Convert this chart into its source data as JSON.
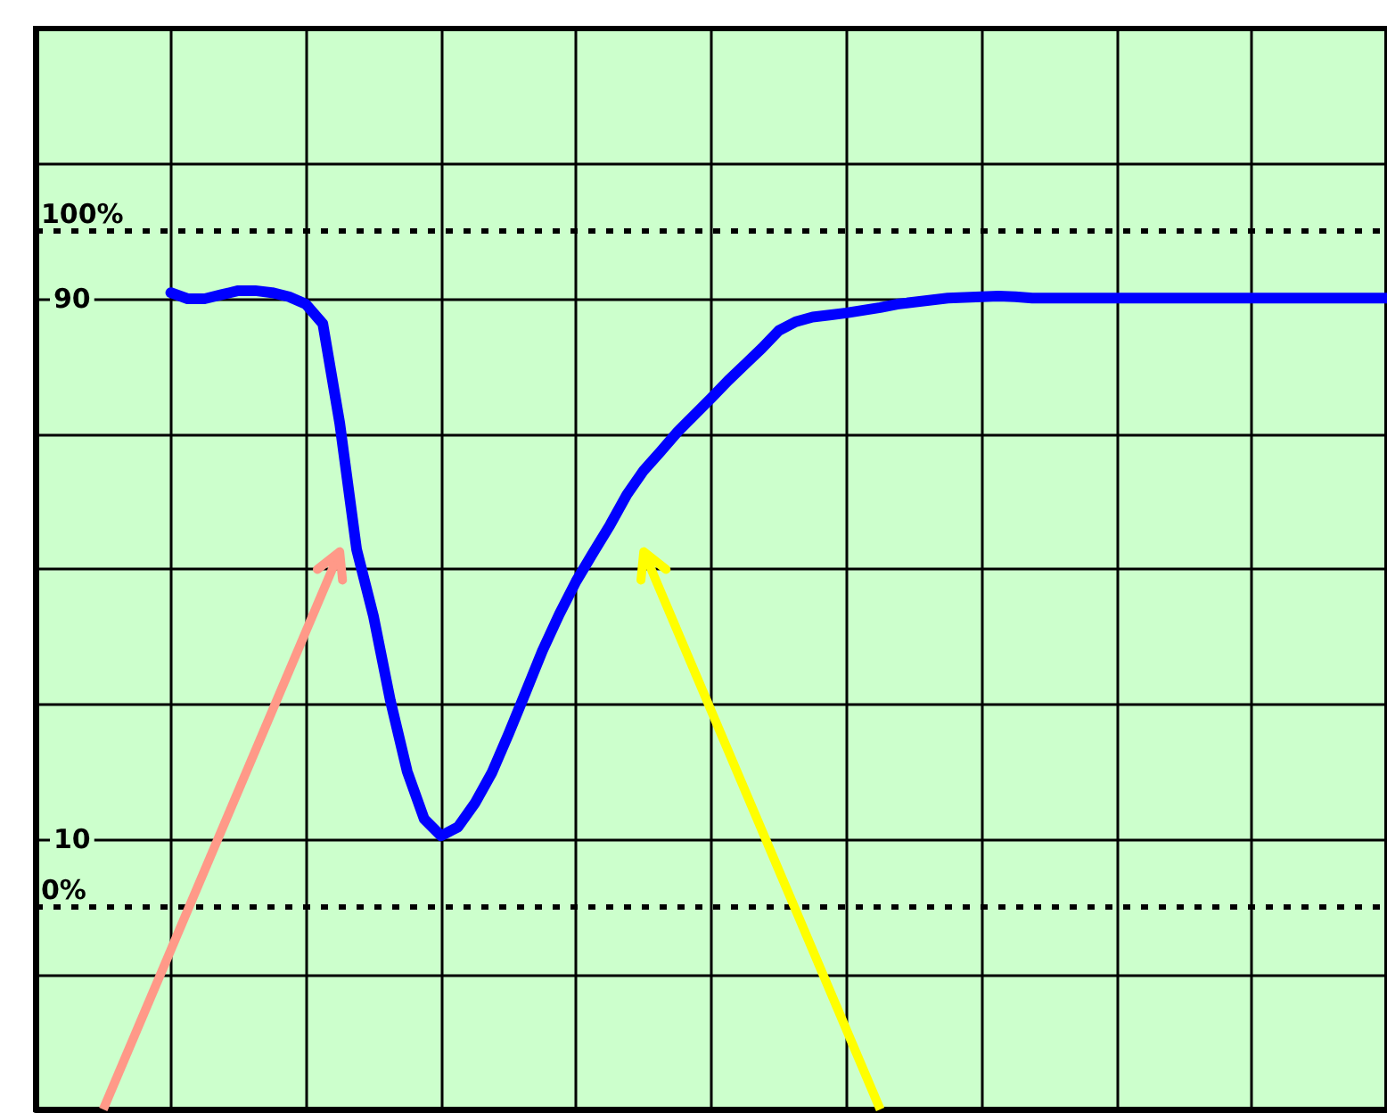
{
  "chart_data": {
    "type": "line",
    "categories": [
      null,
      null,
      null,
      null,
      null,
      null,
      null,
      null,
      null,
      null,
      null,
      null,
      null,
      null,
      null,
      null,
      null,
      null,
      null,
      null,
      null,
      null,
      null,
      null,
      null,
      null,
      null,
      null,
      null,
      null,
      null,
      null,
      null,
      null,
      null,
      null,
      null,
      null,
      null,
      null,
      null,
      null,
      null,
      null,
      null,
      null,
      null,
      null,
      null,
      null,
      null,
      null,
      null,
      null,
      null,
      null,
      null,
      null,
      null,
      null,
      null,
      null,
      null,
      null,
      null,
      null,
      null,
      null,
      null,
      null,
      null,
      null,
      null,
      null,
      null,
      null,
      null,
      null,
      null,
      null,
      null
    ],
    "series": [
      {
        "color": "#0000ff",
        "values": [
          null,
          null,
          null,
          null,
          null,
          null,
          null,
          null,
          90.9,
          90.0,
          90.0,
          90.6,
          91.2,
          91.2,
          90.9,
          90.3,
          89.2,
          86.3,
          71.6,
          52.9,
          43.0,
          30.5,
          20.0,
          13.0,
          10.5,
          11.8,
          15.3,
          19.8,
          25.6,
          31.7,
          37.9,
          43.3,
          48.2,
          52.4,
          56.5,
          61.0,
          64.6,
          67.4,
          70.3,
          72.8,
          75.3,
          77.9,
          80.3,
          82.7,
          85.3,
          86.6,
          87.3,
          87.6,
          87.9,
          88.3,
          88.7,
          89.2,
          89.5,
          89.8,
          90.1,
          90.2,
          90.3,
          90.4,
          90.3,
          90.1,
          90.1,
          90.1,
          90.1,
          90.1,
          90.1,
          90.1,
          90.1,
          90.1,
          90.1,
          90.1,
          90.1,
          90.1,
          90.1,
          90.1,
          90.1,
          90.1,
          90.1,
          90.1,
          90.1,
          90.1,
          90.1
        ]
      }
    ],
    "ylim": [
      -30,
      130
    ],
    "yticks": [
      {
        "value": -10,
        "label": null
      },
      10,
      {
        "value": 30,
        "label": null
      },
      {
        "value": 50,
        "label": null
      },
      {
        "value": 70,
        "label": null
      },
      90,
      {
        "value": 110,
        "label": null
      }
    ],
    "ref_lines": [
      {
        "axis": "y",
        "value": 100,
        "label": "100%",
        "color": "#000000",
        "line_style": "dotted"
      },
      {
        "axis": "y",
        "value": 0,
        "label": "0%",
        "color": "#000000",
        "line_style": "dotted"
      }
    ],
    "tick_labels": "y",
    "grid": true,
    "marker": "none",
    "line_style": "solid"
  }
}
